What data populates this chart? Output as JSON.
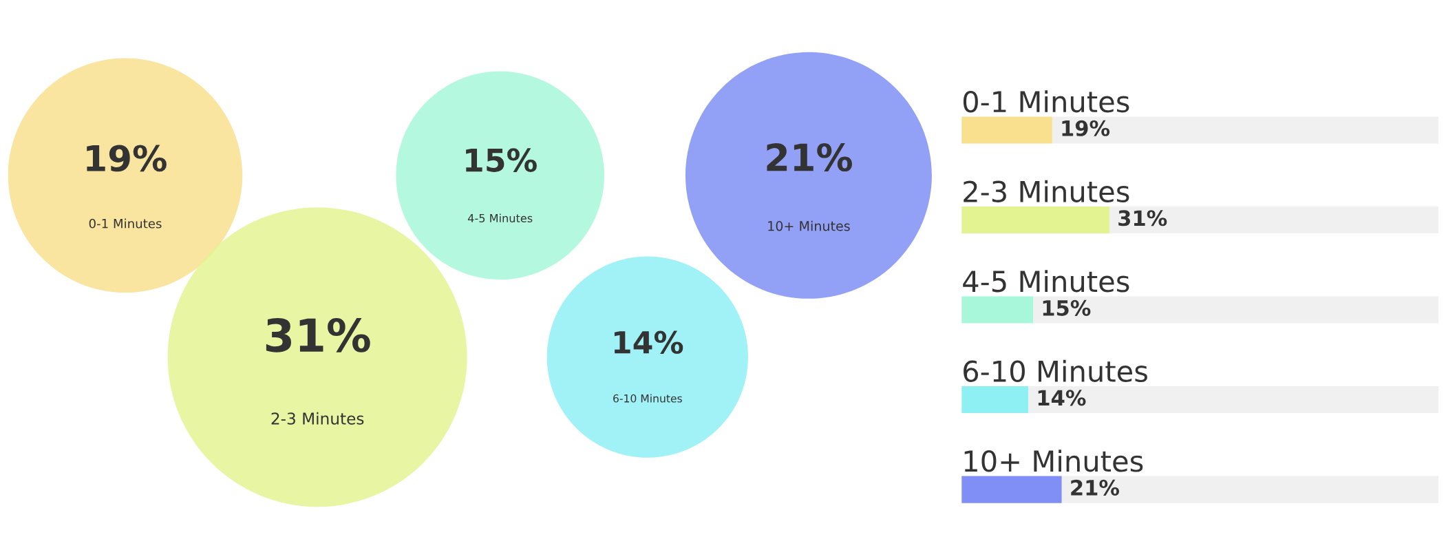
{
  "chart_data": [
    {
      "type": "other",
      "categories": [
        "0-1 Minutes",
        "2-3 Minutes",
        "4-5 Minutes",
        "6-10 Minutes",
        "10+ Minutes"
      ],
      "values": [
        19,
        31,
        15,
        14,
        21
      ],
      "colors": [
        "#f8e08e",
        "#e4f392",
        "#a8f7da",
        "#8ff0f4",
        "#7f8ff5"
      ],
      "value_labels": [
        "19%",
        "31%",
        "15%",
        "14%",
        "21%"
      ]
    },
    {
      "type": "bar",
      "orientation": "horizontal",
      "categories": [
        "0-1 Minutes",
        "2-3 Minutes",
        "4-5 Minutes",
        "6-10 Minutes",
        "10+ Minutes"
      ],
      "stacked": true,
      "tick_labels": false,
      "grid": false,
      "legend": false,
      "series": [
        {
          "colors": [
            "#f8e08e",
            "#e4f392",
            "#a8f7da",
            "#8ff0f4",
            "#7f8ff5"
          ],
          "values": [
            19,
            31,
            15,
            14,
            21
          ],
          "value_labels": [
            "19%",
            "31%",
            "15%",
            "14%",
            "21%"
          ]
        },
        {
          "color": "#f0f0f0",
          "values": [
            81,
            69,
            85,
            86,
            79
          ]
        }
      ]
    }
  ]
}
